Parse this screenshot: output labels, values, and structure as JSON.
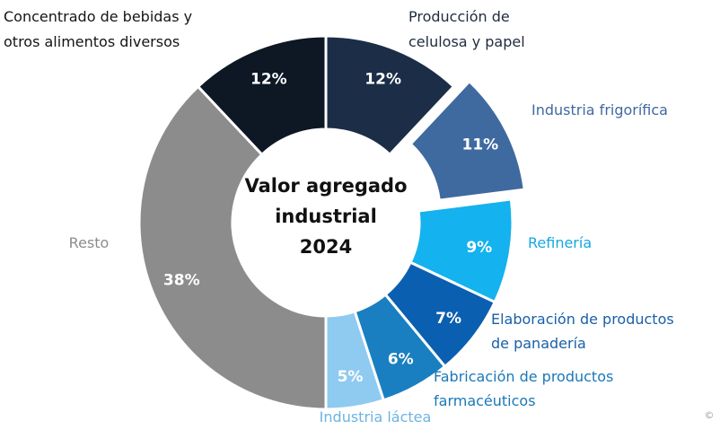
{
  "chart_data": {
    "type": "pie",
    "variant": "donut",
    "title_lines": [
      "Valor agregado",
      "industrial",
      "2024"
    ],
    "slices": [
      {
        "label_lines": [
          "Producción de",
          "celulosa y papel"
        ],
        "value": 12,
        "value_label": "12%",
        "color": "#1c2d47",
        "label_color": "#1f2b3e",
        "exploded": false
      },
      {
        "label_lines": [
          "Industria frigorífica"
        ],
        "value": 11,
        "value_label": "11%",
        "color": "#3f6aa0",
        "label_color": "#3f6aa0",
        "exploded": true
      },
      {
        "label_lines": [
          "Refinería"
        ],
        "value": 9,
        "value_label": "9%",
        "color": "#14b2ee",
        "label_color": "#14a8e0",
        "exploded": false
      },
      {
        "label_lines": [
          "Elaboración de productos",
          "de panadería"
        ],
        "value": 7,
        "value_label": "7%",
        "color": "#0b5fb0",
        "label_color": "#1a5fa8",
        "exploded": false
      },
      {
        "label_lines": [
          "Fabricación de productos",
          "farmacéuticos"
        ],
        "value": 6,
        "value_label": "6%",
        "color": "#1a7fc0",
        "label_color": "#1a78b8",
        "exploded": false
      },
      {
        "label_lines": [
          "Industria láctea"
        ],
        "value": 5,
        "value_label": "5%",
        "color": "#8fcaf0",
        "label_color": "#6cb4e0",
        "exploded": false
      },
      {
        "label_lines": [
          "Resto"
        ],
        "value": 38,
        "value_label": "38%",
        "color": "#8c8c8c",
        "label_color": "#8c8c8c",
        "exploded": false
      },
      {
        "label_lines": [
          "Concentrado de bebidas y",
          "otros alimentos diversos"
        ],
        "value": 12,
        "value_label": "12%",
        "color": "#0e1724",
        "label_color": "#151515",
        "exploded": false
      }
    ]
  },
  "corner_mark": "©"
}
